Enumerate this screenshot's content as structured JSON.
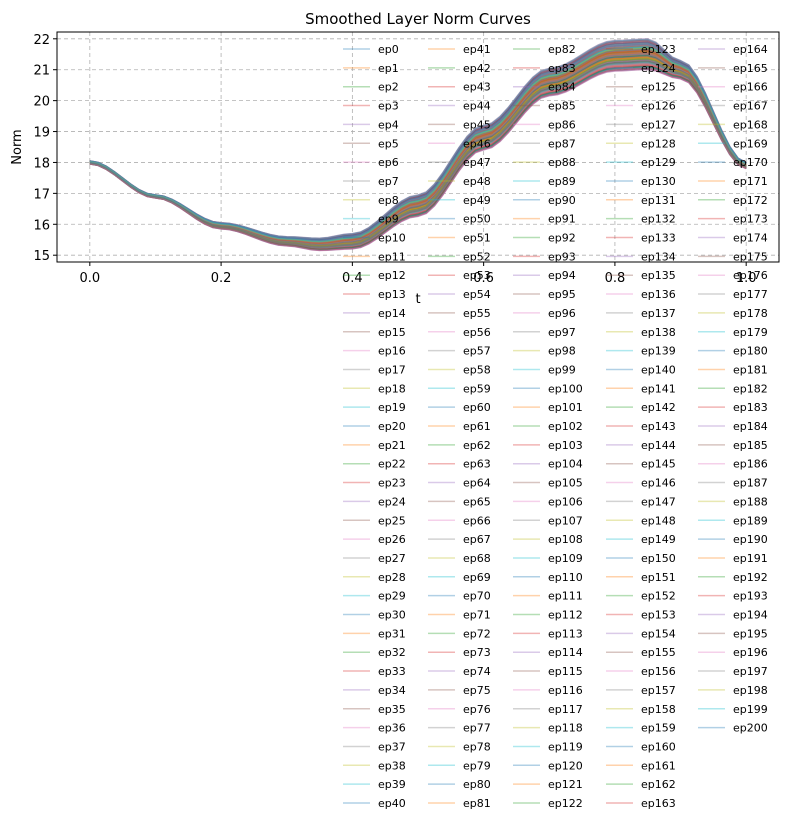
{
  "chart_data": {
    "type": "line",
    "title": "Smoothed Layer Norm Curves",
    "xlabel": "t",
    "ylabel": "Norm",
    "xlim": [
      -0.05,
      1.05
    ],
    "ylim": [
      14.78,
      22.22
    ],
    "xticks": [
      0.0,
      0.2,
      0.4,
      0.6,
      0.8,
      1.0
    ],
    "xtick_labels": [
      "0.0",
      "0.2",
      "0.4",
      "0.6",
      "0.8",
      "1.0"
    ],
    "yticks": [
      15,
      16,
      17,
      18,
      19,
      20,
      21,
      22
    ],
    "ytick_labels": [
      "15",
      "16",
      "17",
      "18",
      "19",
      "20",
      "21",
      "22"
    ],
    "grid": true,
    "legend_position": "upper-right",
    "legend_columns": 5,
    "series_count": 201,
    "series_name_prefix": "ep",
    "x": [
      0.0,
      0.1,
      0.2,
      0.3,
      0.35,
      0.4,
      0.5,
      0.6,
      0.7,
      0.8,
      0.85,
      0.9,
      1.0
    ],
    "y_center": [
      18.0,
      16.9,
      15.95,
      15.45,
      15.35,
      15.45,
      16.6,
      18.8,
      20.6,
      21.45,
      21.5,
      21.0,
      17.9
    ],
    "y_spread": [
      0.05,
      0.05,
      0.1,
      0.15,
      0.2,
      0.25,
      0.35,
      0.4,
      0.45,
      0.5,
      0.5,
      0.3,
      0.1
    ],
    "palette": [
      "#1f77b4",
      "#ff7f0e",
      "#2ca02c",
      "#d62728",
      "#9467bd",
      "#8c564b",
      "#e377c2",
      "#7f7f7f",
      "#bcbd22",
      "#17becf"
    ]
  }
}
